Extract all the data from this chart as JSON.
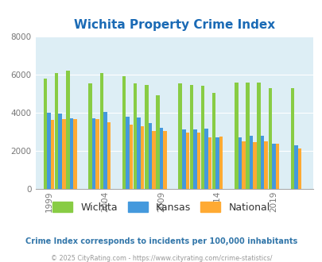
{
  "title": "Wichita Property Crime Index",
  "title_color": "#1a6ab5",
  "subtitle": "Crime Index corresponds to incidents per 100,000 inhabitants",
  "subtitle_color": "#3377aa",
  "footer": "© 2025 CityRating.com - https://www.cityrating.com/crime-statistics/",
  "footer_color": "#999999",
  "years": [
    1999,
    2000,
    2001,
    2003,
    2004,
    2006,
    2007,
    2008,
    2009,
    2011,
    2012,
    2013,
    2014,
    2016,
    2017,
    2018,
    2019,
    2021
  ],
  "wichita": [
    5800,
    6100,
    6200,
    5550,
    6100,
    5900,
    5550,
    5450,
    4900,
    5550,
    5450,
    5400,
    5050,
    5600,
    5600,
    5600,
    5300,
    5300
  ],
  "kansas": [
    4000,
    3950,
    3700,
    3700,
    4050,
    3800,
    3750,
    3450,
    3200,
    3100,
    3100,
    3150,
    2700,
    2700,
    2800,
    2800,
    2350,
    2300
  ],
  "national": [
    3600,
    3650,
    3650,
    3650,
    3500,
    3350,
    3300,
    3050,
    3050,
    2950,
    2950,
    2700,
    2750,
    2500,
    2450,
    2500,
    2350,
    2100
  ],
  "wichita_color": "#88cc44",
  "kansas_color": "#4499dd",
  "national_color": "#ffaa33",
  "bg_color": "#ddeef5",
  "ylim": [
    0,
    8000
  ],
  "yticks": [
    0,
    2000,
    4000,
    6000,
    8000
  ],
  "xtick_labels": [
    "1999",
    "2004",
    "2009",
    "2014",
    "2019"
  ],
  "xtick_positions": [
    1999,
    2004,
    2009,
    2014,
    2019
  ],
  "bar_width": 0.32,
  "xlim_left": 1997.8,
  "xlim_right": 2022.5,
  "legend_labels": [
    "Wichita",
    "Kansas",
    "National"
  ],
  "legend_text_color": "#333333",
  "tick_label_color": "#777777",
  "grid_color": "#ffffff",
  "spine_color": "#aaaaaa"
}
